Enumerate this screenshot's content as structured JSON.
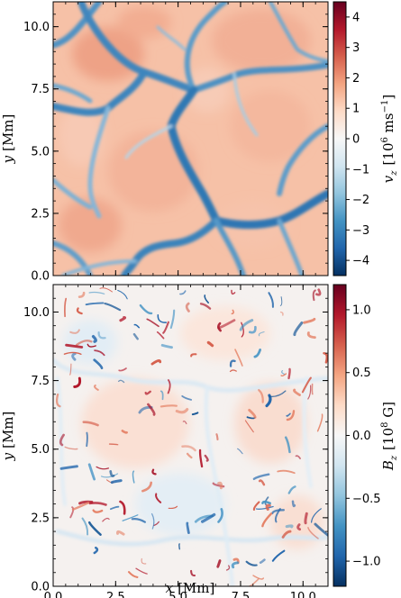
{
  "chart_data": [
    {
      "type": "heatmap",
      "title": "",
      "field_variable": "v_z",
      "xlabel": "",
      "ylabel": "y [Mm]",
      "ylabel_var": "y",
      "ylabel_unit": "[Mm]",
      "xlim": [
        0,
        11
      ],
      "ylim": [
        0,
        11
      ],
      "x_ticks": [],
      "y_ticks": [
        "0.0",
        "2.5",
        "5.0",
        "7.5",
        "10.0"
      ],
      "y_tick_values": [
        0,
        2.5,
        5.0,
        7.5,
        10.0
      ],
      "colormap": "RdBu_r",
      "colorbar": {
        "label_var": "v",
        "label_sub": "z",
        "label_unit_pre": "[10",
        "label_unit_exp": "6",
        "label_unit_mid": " ms",
        "label_unit_exp2": "−1",
        "label_unit_post": "]",
        "range": [
          -4.5,
          4.5
        ],
        "ticks": [
          "−4",
          "−3",
          "−2",
          "−1",
          "0",
          "1",
          "2",
          "3",
          "4"
        ],
        "tick_values": [
          -4,
          -3,
          -2,
          -1,
          0,
          1,
          2,
          3,
          4
        ]
      },
      "description_note": "granulation pattern: warm upflow cells separated by blue intergranular downflow lanes"
    },
    {
      "type": "heatmap",
      "title": "",
      "field_variable": "B_z",
      "xlabel": "x [Mm]",
      "xlabel_var": "x",
      "xlabel_unit": "[Mm]",
      "ylabel": "y [Mm]",
      "ylabel_var": "y",
      "ylabel_unit": "[Mm]",
      "xlim": [
        0,
        11
      ],
      "ylim": [
        0,
        11
      ],
      "x_ticks": [
        "0.0",
        "2.5",
        "5.0",
        "7.5",
        "10.0"
      ],
      "x_tick_values": [
        0,
        2.5,
        5.0,
        7.5,
        10.0
      ],
      "y_ticks": [
        "0.0",
        "2.5",
        "5.0",
        "7.5",
        "10.0"
      ],
      "y_tick_values": [
        0,
        2.5,
        5.0,
        7.5,
        10.0
      ],
      "colormap": "RdBu_r",
      "colorbar": {
        "label_var": "B",
        "label_sub": "z",
        "label_unit_pre": "[10",
        "label_unit_exp": "8",
        "label_unit_post": " G]",
        "range": [
          -1.2,
          1.2
        ],
        "ticks": [
          "−1.0",
          "−0.5",
          "0.0",
          "0.5",
          "1.0"
        ],
        "tick_values": [
          -1.0,
          -0.5,
          0.0,
          0.5,
          1.0
        ]
      }
    }
  ],
  "colors": {
    "cmap_stops": [
      "#053061",
      "#2166ac",
      "#4393c3",
      "#92c5de",
      "#d1e5f0",
      "#f7f7f7",
      "#fddbc7",
      "#f4a582",
      "#d6604d",
      "#b2182b",
      "#67001f"
    ]
  }
}
